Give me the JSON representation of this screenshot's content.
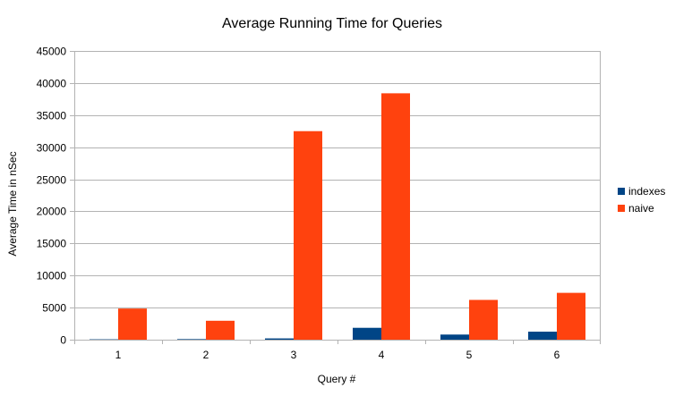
{
  "chart_data": {
    "type": "bar",
    "title": "Average Running Time for Queries",
    "xlabel": "Query #",
    "ylabel": "Average Time in nSec",
    "categories": [
      "1",
      "2",
      "3",
      "4",
      "5",
      "6"
    ],
    "series": [
      {
        "name": "indexes",
        "color": "#004586",
        "values": [
          60,
          90,
          200,
          1850,
          800,
          1250
        ]
      },
      {
        "name": "naive",
        "color": "#ff420e",
        "values": [
          4850,
          2950,
          32500,
          38400,
          6200,
          7300
        ]
      }
    ],
    "ylim": [
      0,
      45000
    ],
    "yticks": [
      0,
      5000,
      10000,
      15000,
      20000,
      25000,
      30000,
      35000,
      40000,
      45000
    ],
    "grid": true,
    "legend_position": "right"
  }
}
